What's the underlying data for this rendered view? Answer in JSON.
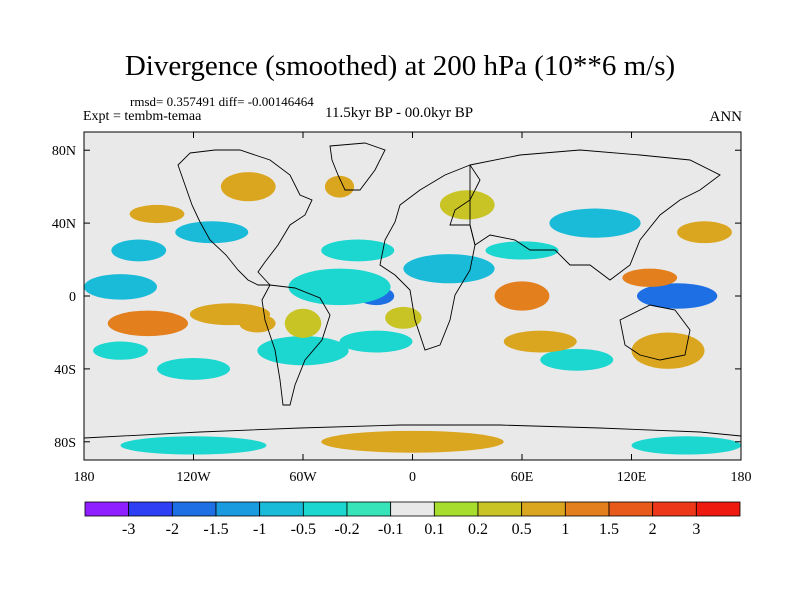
{
  "chart_data": {
    "type": "contour-map",
    "title": "Divergence (smoothed) at 200 hPa (10**6 m/s)",
    "stats_text": "rmsd= 0.357491 diff= -0.00146464",
    "experiment_text": "Expt = tembm-temaa",
    "period_text": "11.5kyr BP - 00.0kyr BP",
    "season": "ANN",
    "x_ticks": [
      "180",
      "120W",
      "60W",
      "0",
      "60E",
      "120E",
      "180"
    ],
    "y_ticks": [
      "80N",
      "40N",
      "0",
      "40S",
      "80S"
    ],
    "lon_range": [
      -180,
      180
    ],
    "lat_range": [
      -90,
      90
    ],
    "colorbar": {
      "labels": [
        "-3",
        "-2",
        "-1.5",
        "-1",
        "-0.5",
        "-0.2",
        "-0.1",
        "0.1",
        "0.2",
        "0.5",
        "1",
        "1.5",
        "2",
        "3"
      ],
      "colors": [
        "#8f1fff",
        "#2f3ff3",
        "#1d6fe3",
        "#1a9be0",
        "#19bbd8",
        "#1cd6d0",
        "#37e3b9",
        "#e9e9e9",
        "#a7de2d",
        "#c9c425",
        "#dba61f",
        "#e37f1c",
        "#e85a1a",
        "#ec3818",
        "#ee1a10"
      ]
    },
    "features": [
      {
        "lon": -145,
        "lat": -15,
        "level": 11,
        "rx": 22,
        "ry": 7
      },
      {
        "lon": -100,
        "lat": -10,
        "level": 10,
        "rx": 22,
        "ry": 6
      },
      {
        "lon": -20,
        "lat": 0,
        "level": 2,
        "rx": 10,
        "ry": 5
      },
      {
        "lon": -40,
        "lat": 5,
        "level": 5,
        "rx": 28,
        "ry": 10
      },
      {
        "lon": -5,
        "lat": -12,
        "level": 9,
        "rx": 10,
        "ry": 6
      },
      {
        "lon": 60,
        "lat": 0,
        "level": 11,
        "rx": 15,
        "ry": 8
      },
      {
        "lon": 145,
        "lat": 0,
        "level": 2,
        "rx": 22,
        "ry": 7
      },
      {
        "lon": 130,
        "lat": 10,
        "level": 11,
        "rx": 15,
        "ry": 5
      },
      {
        "lon": -160,
        "lat": 5,
        "level": 4,
        "rx": 20,
        "ry": 7
      },
      {
        "lon": 20,
        "lat": 15,
        "level": 4,
        "rx": 25,
        "ry": 8
      },
      {
        "lon": -60,
        "lat": -30,
        "level": 5,
        "rx": 25,
        "ry": 8
      },
      {
        "lon": -120,
        "lat": -40,
        "level": 5,
        "rx": 20,
        "ry": 6
      },
      {
        "lon": 90,
        "lat": -35,
        "level": 5,
        "rx": 20,
        "ry": 6
      },
      {
        "lon": 140,
        "lat": -30,
        "level": 10,
        "rx": 20,
        "ry": 10
      },
      {
        "lon": -90,
        "lat": 60,
        "level": 10,
        "rx": 15,
        "ry": 8
      },
      {
        "lon": -140,
        "lat": 45,
        "level": 10,
        "rx": 15,
        "ry": 5
      },
      {
        "lon": -150,
        "lat": 25,
        "level": 4,
        "rx": 15,
        "ry": 6
      },
      {
        "lon": -30,
        "lat": 25,
        "level": 5,
        "rx": 20,
        "ry": 6
      },
      {
        "lon": 60,
        "lat": 25,
        "level": 5,
        "rx": 20,
        "ry": 5
      },
      {
        "lon": -40,
        "lat": 60,
        "level": 10,
        "rx": 8,
        "ry": 6
      },
      {
        "lon": 30,
        "lat": 50,
        "level": 9,
        "rx": 15,
        "ry": 8
      },
      {
        "lon": 0,
        "lat": -80,
        "level": 10,
        "rx": 50,
        "ry": 6
      },
      {
        "lon": -120,
        "lat": -82,
        "level": 5,
        "rx": 40,
        "ry": 5
      },
      {
        "lon": 150,
        "lat": -82,
        "level": 5,
        "rx": 30,
        "ry": 5
      },
      {
        "lon": -85,
        "lat": -15,
        "level": 10,
        "rx": 10,
        "ry": 5
      },
      {
        "lon": -60,
        "lat": -15,
        "level": 9,
        "rx": 10,
        "ry": 8
      },
      {
        "lon": -20,
        "lat": -25,
        "level": 5,
        "rx": 20,
        "ry": 6
      },
      {
        "lon": -160,
        "lat": -30,
        "level": 5,
        "rx": 15,
        "ry": 5
      },
      {
        "lon": -110,
        "lat": 35,
        "level": 4,
        "rx": 20,
        "ry": 6
      },
      {
        "lon": 100,
        "lat": 40,
        "level": 4,
        "rx": 25,
        "ry": 8
      },
      {
        "lon": 160,
        "lat": 35,
        "level": 10,
        "rx": 15,
        "ry": 6
      },
      {
        "lon": 70,
        "lat": -25,
        "level": 10,
        "rx": 20,
        "ry": 6
      }
    ]
  }
}
